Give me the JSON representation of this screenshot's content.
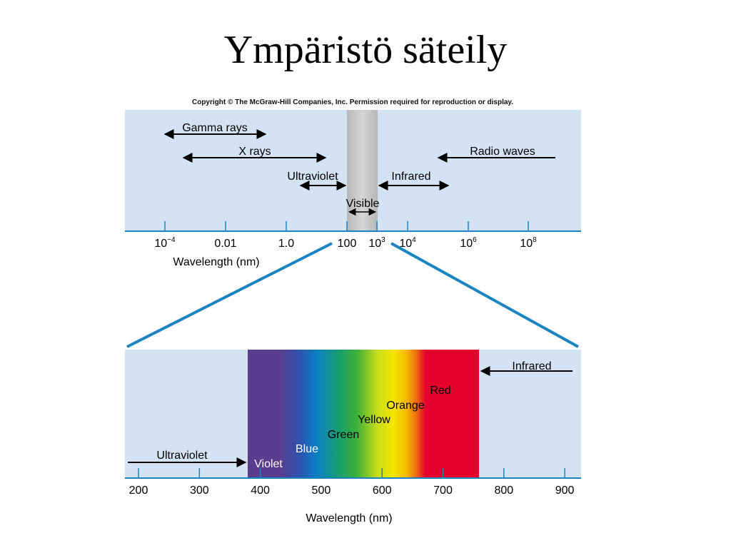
{
  "slide": {
    "title": "Ympäristö säteily",
    "copyright": "Copyright © The McGraw-Hill Companies, Inc. Permission required for reproduction or display."
  },
  "colors": {
    "panel_bg": "#d4e3f3",
    "axis_blue": "#1a84c2",
    "visible_band": "#c8c8c8",
    "violet": "#5a3d8f",
    "red": "#e3002d"
  },
  "top_panel": {
    "bands": {
      "gamma": "Gamma rays",
      "xrays": "X rays",
      "uv": "Ultraviolet",
      "ir": "Infrared",
      "radio": "Radio waves",
      "visible": "Visible"
    },
    "tick_labels": [
      "10",
      "0.01",
      "1.0",
      "100",
      "10",
      "10",
      "10",
      "10"
    ],
    "tick_exponents": [
      "−4",
      "",
      "",
      "",
      "3",
      "4",
      "6",
      "8"
    ],
    "axis_label": "Wavelength (nm)"
  },
  "bottom_panel": {
    "uv_label": "Ultraviolet",
    "ir_label": "Infrared",
    "colors": {
      "violet": "Violet",
      "blue": "Blue",
      "green": "Green",
      "yellow": "Yellow",
      "orange": "Orange",
      "red": "Red"
    },
    "tick_labels": [
      "200",
      "300",
      "400",
      "500",
      "600",
      "700",
      "800",
      "900"
    ],
    "axis_label": "Wavelength (nm)"
  }
}
